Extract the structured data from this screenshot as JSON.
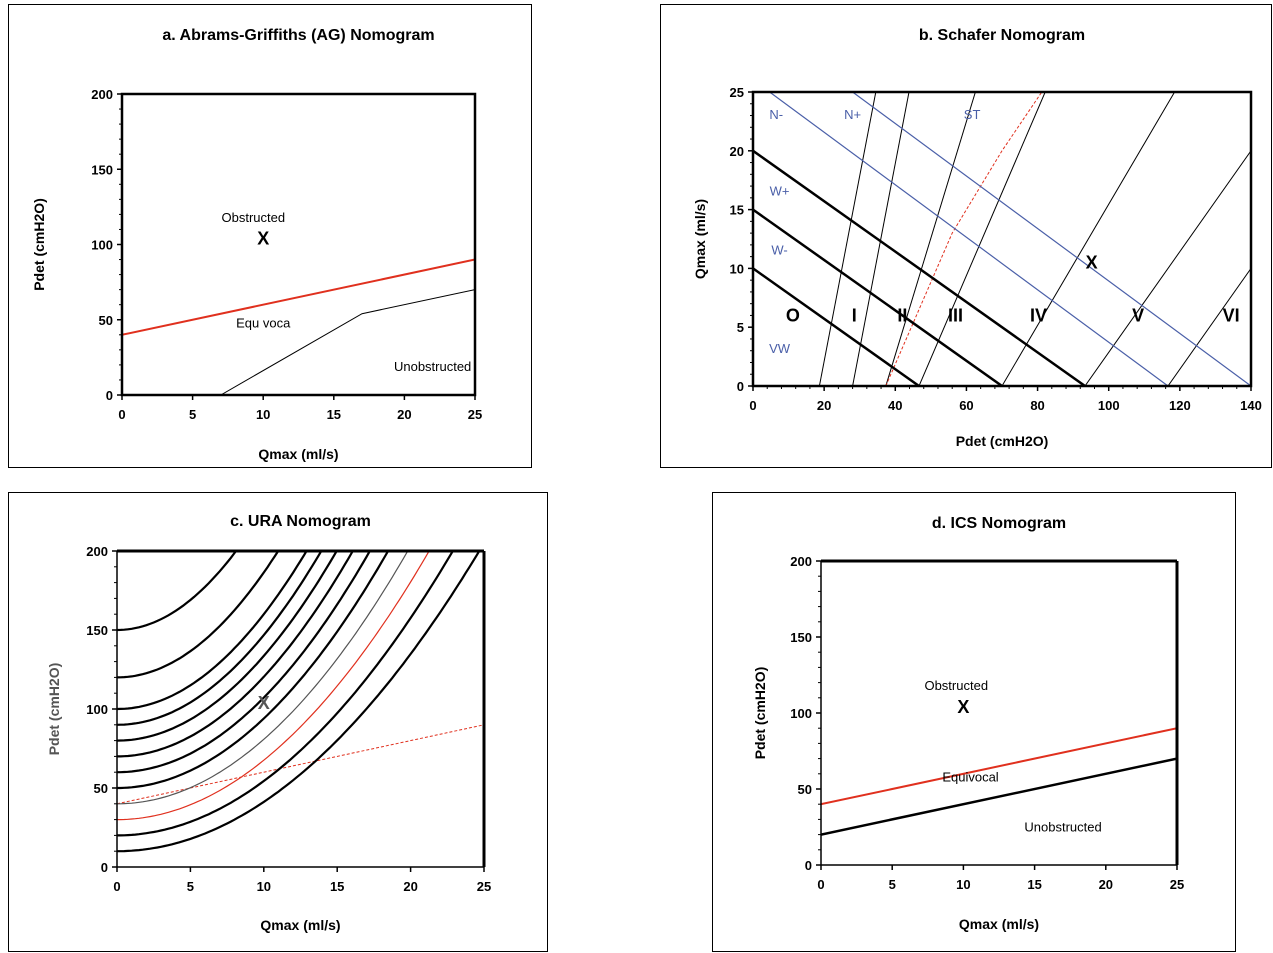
{
  "colors": {
    "red": "#e0301e",
    "blue": "#4a5fa8",
    "black": "#000000",
    "gray": "#555555"
  },
  "chart_data": [
    {
      "id": "a",
      "type": "line",
      "title": "a. Abrams-Griffiths (AG) Nomogram",
      "xlabel": "Qmax (ml/s)",
      "ylabel": "Pdet (cmH2O)",
      "xlim": [
        0,
        25
      ],
      "ylim": [
        0,
        200
      ],
      "xticks": [
        "0",
        "5",
        "10",
        "15",
        "20",
        "25"
      ],
      "yticks": [
        "0",
        "50",
        "100",
        "150",
        "200"
      ],
      "series": [
        {
          "color": "#e0301e",
          "width": 2,
          "points": [
            [
              0,
              40
            ],
            [
              25,
              90
            ]
          ]
        },
        {
          "color": "#000000",
          "width": 1,
          "points": [
            [
              7,
              0
            ],
            [
              17,
              54
            ],
            [
              25,
              70
            ]
          ]
        }
      ],
      "annotations": [
        {
          "text": "Obstructed",
          "x": 9.3,
          "y": 115
        },
        {
          "text": "X",
          "x": 10,
          "y": 100,
          "bold": true
        },
        {
          "text": "Equ voca",
          "x": 10,
          "y": 45
        },
        {
          "text": "Unobstructed",
          "x": 22,
          "y": 16
        }
      ]
    },
    {
      "id": "b",
      "type": "line",
      "title": "b. Schafer Nomogram",
      "xlabel": "Pdet (cmH2O)",
      "ylabel": "Qmax (ml/s)",
      "xlim": [
        0,
        150
      ],
      "ylim": [
        0,
        25
      ],
      "xticks": [
        "0",
        "20",
        "40",
        "60",
        "80",
        "100",
        "120",
        "140"
      ],
      "yticks": [
        "0",
        "5",
        "10",
        "15",
        "20",
        "25"
      ],
      "series": [
        {
          "color": "#000000",
          "width": 1,
          "points": [
            [
              20,
              0
            ],
            [
              37,
              25
            ]
          ]
        },
        {
          "color": "#000000",
          "width": 1,
          "points": [
            [
              30,
              0
            ],
            [
              47,
              25
            ]
          ]
        },
        {
          "color": "#000000",
          "width": 1,
          "points": [
            [
              40,
              0
            ],
            [
              67,
              25
            ]
          ]
        },
        {
          "color": "#000000",
          "width": 1,
          "points": [
            [
              50,
              0
            ],
            [
              88,
              25
            ]
          ]
        },
        {
          "color": "#000000",
          "width": 1,
          "points": [
            [
              75,
              0
            ],
            [
              127,
              25
            ]
          ]
        },
        {
          "color": "#000000",
          "width": 1,
          "points": [
            [
              100,
              0
            ],
            [
              150,
              20
            ]
          ]
        },
        {
          "color": "#000000",
          "width": 1,
          "points": [
            [
              125,
              0
            ],
            [
              150,
              10
            ]
          ]
        },
        {
          "color": "#e0301e",
          "width": 1,
          "dash": "3 2",
          "points": [
            [
              40,
              0
            ],
            [
              60,
              13
            ],
            [
              75,
              20
            ],
            [
              87,
              25
            ]
          ]
        },
        {
          "color": "#000000",
          "width": 2.5,
          "points": [
            [
              0,
              10
            ],
            [
              50,
              0
            ]
          ]
        },
        {
          "color": "#000000",
          "width": 2.5,
          "points": [
            [
              0,
              15
            ],
            [
              75,
              0
            ]
          ]
        },
        {
          "color": "#000000",
          "width": 2.5,
          "points": [
            [
              0,
              20
            ],
            [
              100,
              0
            ]
          ]
        },
        {
          "color": "#4a5fa8",
          "width": 1.2,
          "points": [
            [
              5,
              25
            ],
            [
              125,
              0
            ]
          ]
        },
        {
          "color": "#4a5fa8",
          "width": 1.2,
          "points": [
            [
              30,
              25
            ],
            [
              150,
              0
            ]
          ]
        }
      ],
      "annotations": [
        {
          "text": "N-",
          "x": 7,
          "y": 22.7,
          "color": "#4a5fa8",
          "size": 17
        },
        {
          "text": "N+",
          "x": 30,
          "y": 22.7,
          "color": "#4a5fa8",
          "size": 17
        },
        {
          "text": "ST",
          "x": 66,
          "y": 22.7,
          "color": "#4a5fa8",
          "size": 17
        },
        {
          "text": "W+",
          "x": 8,
          "y": 16.2,
          "color": "#4a5fa8",
          "size": 17
        },
        {
          "text": "W-",
          "x": 8,
          "y": 11.2,
          "color": "#4a5fa8",
          "size": 17
        },
        {
          "text": "VW",
          "x": 8,
          "y": 2.8,
          "color": "#4a5fa8",
          "size": 17
        },
        {
          "text": "X",
          "x": 102,
          "y": 10,
          "bold": true,
          "size": 16
        },
        {
          "text": "O",
          "x": 12,
          "y": 5.5,
          "bold": true,
          "size": 22
        },
        {
          "text": "I",
          "x": 30.5,
          "y": 5.5,
          "bold": true,
          "size": 22
        },
        {
          "text": "II",
          "x": 45,
          "y": 5.5,
          "bold": true,
          "size": 22
        },
        {
          "text": "III",
          "x": 61,
          "y": 5.5,
          "bold": true,
          "size": 22
        },
        {
          "text": "IV",
          "x": 86,
          "y": 5.5,
          "bold": true,
          "size": 22
        },
        {
          "text": "V",
          "x": 116,
          "y": 5.5,
          "bold": true,
          "size": 22
        },
        {
          "text": "VI",
          "x": 144,
          "y": 5.5,
          "bold": true,
          "size": 22
        }
      ]
    },
    {
      "id": "c",
      "type": "line",
      "title": "c. URA Nomogram",
      "xlabel": "Qmax (ml/s)",
      "ylabel": "Pdet (cmH2O)",
      "xlim": [
        0,
        25
      ],
      "ylim": [
        0,
        200
      ],
      "xticks": [
        "0",
        "5",
        "10",
        "15",
        "20",
        "25"
      ],
      "yticks": [
        "0",
        "50",
        "100",
        "150",
        "200"
      ],
      "ura_p0": [
        10,
        20,
        30,
        40,
        50,
        60,
        70,
        80,
        90,
        100,
        120,
        150
      ],
      "series": [
        {
          "color": "#e0301e",
          "width": 1,
          "dash": "3 2",
          "points": [
            [
              0,
              40
            ],
            [
              25,
              90
            ]
          ]
        }
      ],
      "annotations": [
        {
          "text": "X",
          "x": 10,
          "y": 100,
          "bold": true,
          "color": "#555555",
          "size": 18
        }
      ]
    },
    {
      "id": "d",
      "type": "line",
      "title": "d. ICS Nomogram",
      "xlabel": "Qmax (ml/s)",
      "ylabel": "Pdet (cmH2O)",
      "xlim": [
        0,
        25
      ],
      "ylim": [
        0,
        200
      ],
      "xticks": [
        "0",
        "5",
        "10",
        "15",
        "20",
        "25"
      ],
      "yticks": [
        "0",
        "50",
        "100",
        "150",
        "200"
      ],
      "series": [
        {
          "color": "#e0301e",
          "width": 2,
          "points": [
            [
              0,
              40
            ],
            [
              25,
              90
            ]
          ]
        },
        {
          "color": "#000000",
          "width": 2.5,
          "points": [
            [
              0,
              20
            ],
            [
              25,
              70
            ]
          ]
        }
      ],
      "annotations": [
        {
          "text": "Obstructed",
          "x": 9.5,
          "y": 115
        },
        {
          "text": "X",
          "x": 10,
          "y": 100,
          "bold": true
        },
        {
          "text": "Equivocal",
          "x": 10.5,
          "y": 55
        },
        {
          "text": "Unobstructed",
          "x": 17,
          "y": 22
        }
      ]
    }
  ]
}
